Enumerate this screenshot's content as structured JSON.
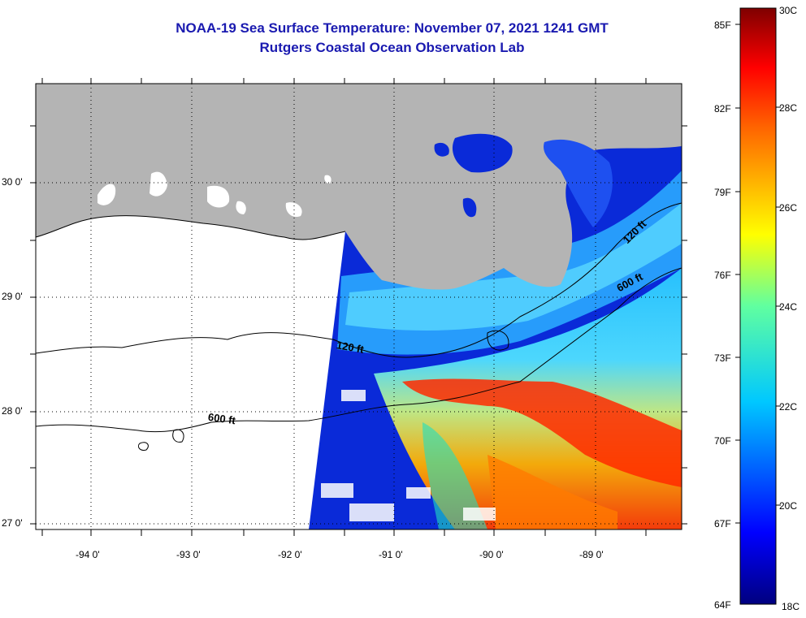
{
  "header": {
    "title": "NOAA-19 Sea Surface Temperature:  November 07, 2021 1241 GMT",
    "subtitle": "Rutgers Coastal Ocean Observation Lab"
  },
  "map": {
    "lat_labels": [
      "30 0'",
      "29 0'",
      "28 0'",
      "27 0'"
    ],
    "lon_labels": [
      "-94 0'",
      "-93 0'",
      "-92 0'",
      "-91 0'",
      "-90 0'",
      "-89 0'"
    ],
    "contour_labels": {
      "c120_left": "120 ft",
      "c600_left": "600 ft",
      "c120_right": "120 ft",
      "c600_right": "600 ft"
    },
    "colors": {
      "land": "#b4b4b4",
      "no_data": "#ffffff"
    }
  },
  "colorbar": {
    "fahrenheit_labels": [
      "85F",
      "82F",
      "79F",
      "76F",
      "73F",
      "70F",
      "67F",
      "64F"
    ],
    "celsius_labels": [
      "30C",
      "28C",
      "26C",
      "24C",
      "22C",
      "20C",
      "18C"
    ],
    "range_c": [
      18,
      30
    ],
    "colormap": "jet"
  }
}
